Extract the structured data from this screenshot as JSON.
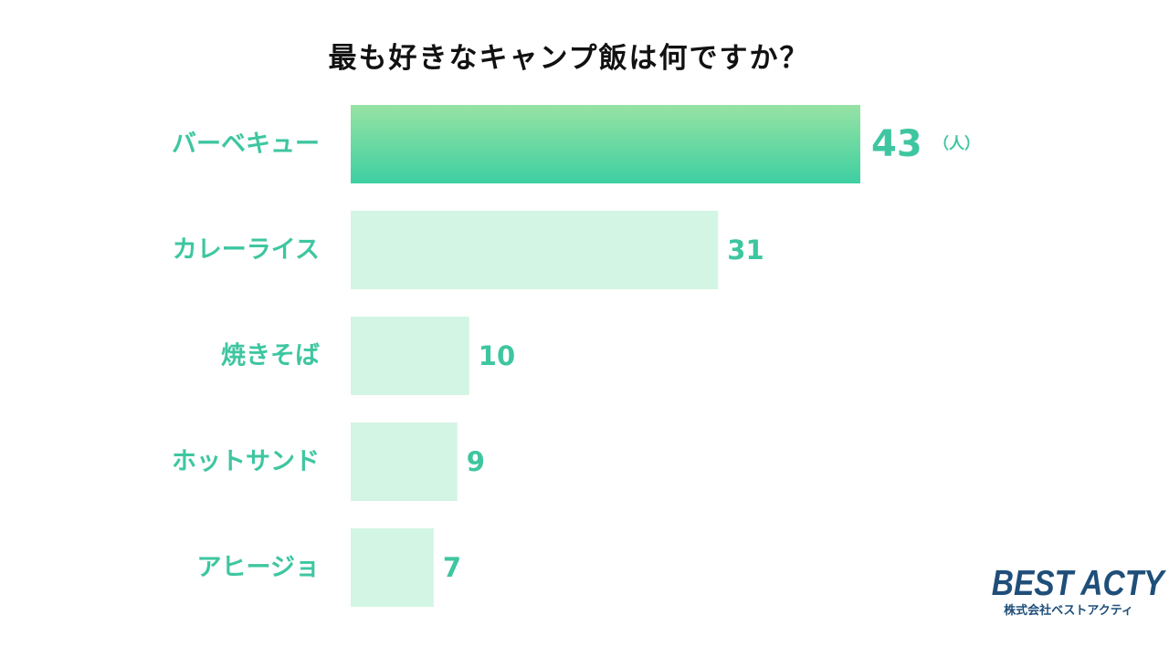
{
  "chart_data": {
    "type": "bar",
    "orientation": "horizontal",
    "title": "最も好きなキャンプ飯は何ですか？",
    "categories": [
      "バーベキュー",
      "カレーライス",
      "焼きそば",
      "ホットサンド",
      "アヒージョ"
    ],
    "values": [
      43,
      31,
      10,
      9,
      7
    ],
    "unit": "（人）",
    "xlim": [
      0,
      43
    ],
    "grid": false,
    "legend": "none",
    "colors": {
      "highlight_top": "#97e3a3",
      "highlight_bottom": "#3ecfa2",
      "bar": "#d3f5e3",
      "label": "#3ec6a0",
      "title": "#111111"
    }
  },
  "logo": {
    "name": "BEST ACTY",
    "company": "株式会社ベストアクティ",
    "color": "#1f4e79"
  }
}
